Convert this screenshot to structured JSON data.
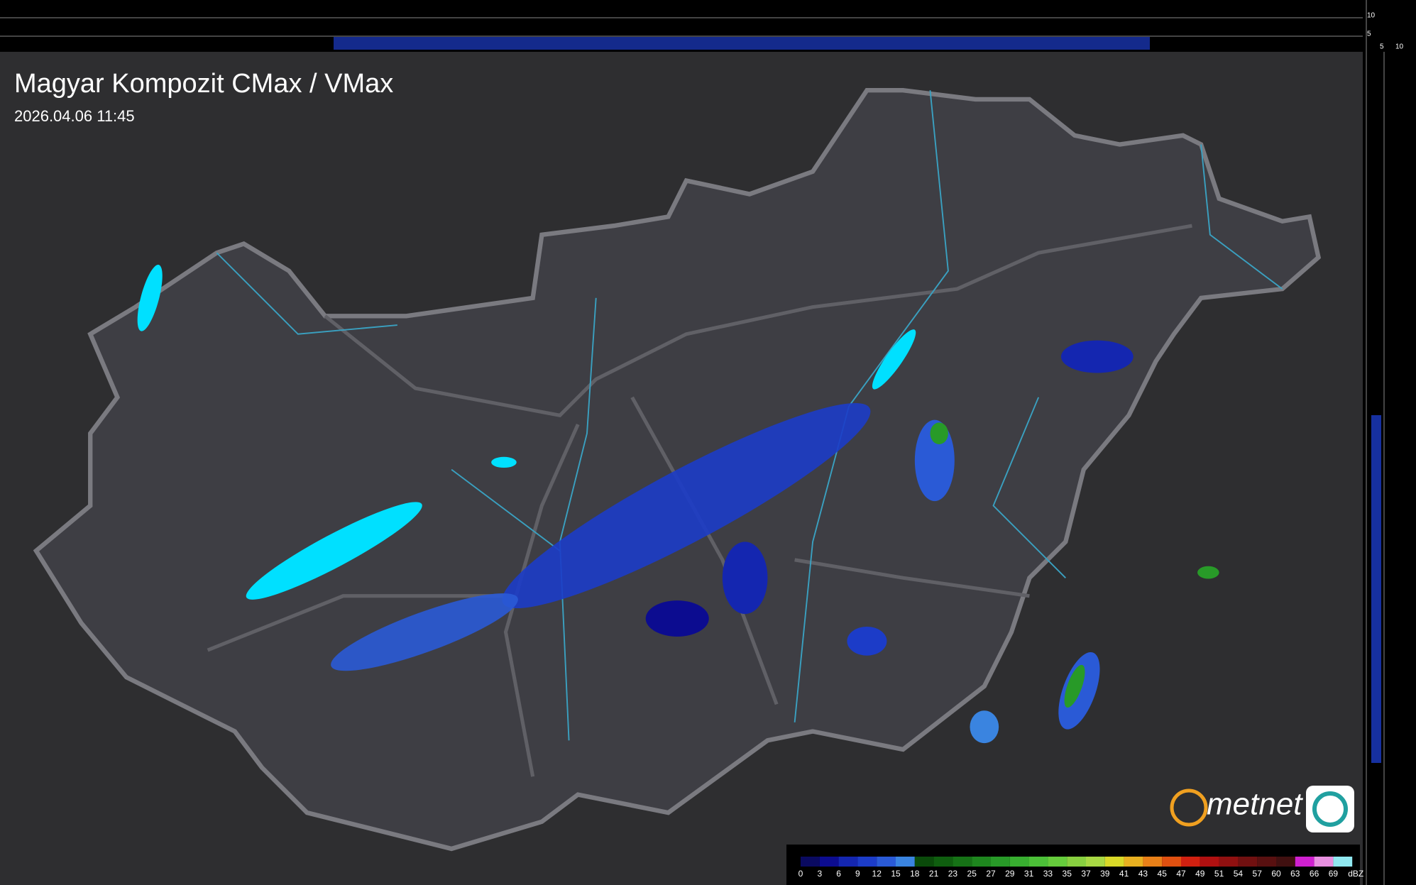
{
  "header": {
    "title": "Magyar Kompozit CMax / VMax",
    "timestamp": "2026.04.06 11:45"
  },
  "profile_axes": {
    "top": [
      10,
      5
    ],
    "side": [
      5,
      10
    ]
  },
  "logo": "metnet",
  "legend": {
    "labels": [
      0,
      3,
      6,
      9,
      12,
      15,
      18,
      21,
      23,
      25,
      27,
      29,
      31,
      33,
      35,
      37,
      39,
      41,
      43,
      45,
      47,
      49,
      51,
      54,
      57,
      60,
      63,
      66,
      69
    ],
    "unit": "dBZ",
    "colors": [
      "#0a0a60",
      "#0c0c90",
      "#1426b0",
      "#1c3cc8",
      "#2a5ad6",
      "#3a84e0",
      "#0a4a0a",
      "#0f5e0f",
      "#167216",
      "#1e861e",
      "#289a28",
      "#38ae30",
      "#4cc038",
      "#66cc3c",
      "#88d040",
      "#a8d844",
      "#d8d828",
      "#e8b020",
      "#e88018",
      "#e05010",
      "#d02010",
      "#b01010",
      "#901010",
      "#701010",
      "#581010",
      "#401010",
      "#d020d0",
      "#e890e0",
      "#90e8f0"
    ]
  }
}
